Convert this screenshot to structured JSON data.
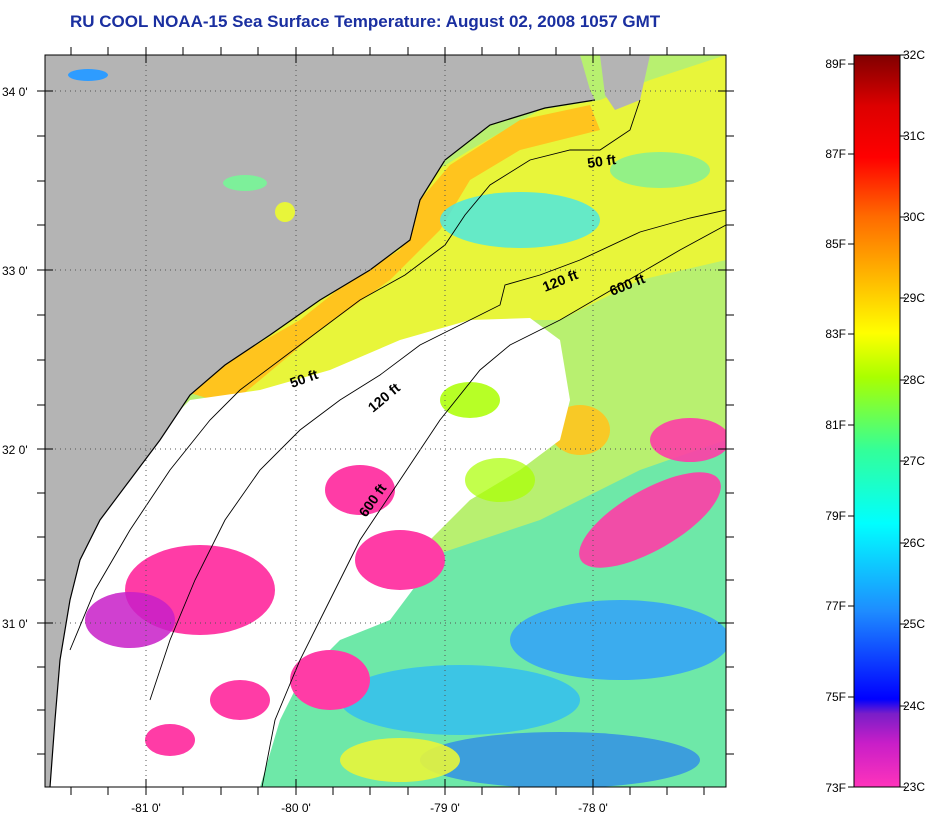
{
  "title": "RU COOL  NOAA-15  Sea Surface Temperature:  August 02, 2008 1057 GMT",
  "map": {
    "lat_labels": [
      "34 0'",
      "33 0'",
      "32 0'",
      "31 0'"
    ],
    "lon_labels": [
      "-81 0'",
      "-80 0'",
      "-79 0'",
      "-78 0'"
    ],
    "contour_labels": [
      "50 ft",
      "120 ft",
      "600 ft",
      "50 ft",
      "120 ft",
      "600 ft"
    ],
    "colors": {
      "land": "#b4b4b4",
      "cloud": "#ffffff",
      "frame": "#000000"
    }
  },
  "colorbar": {
    "fahrenheit_labels": [
      "89F",
      "87F",
      "85F",
      "83F",
      "81F",
      "79F",
      "77F",
      "75F",
      "73F"
    ],
    "celsius_labels": [
      "32C",
      "31C",
      "30C",
      "29C",
      "28C",
      "27C",
      "26C",
      "25C",
      "24C",
      "23C"
    ],
    "colors": [
      "#ff33bb",
      "#c81ec8",
      "#7a1ec8",
      "#0000ff",
      "#1e8cff",
      "#00ffff",
      "#33ff99",
      "#aaff00",
      "#ffff00",
      "#ffb400",
      "#ff6a00",
      "#ff0000",
      "#dd0000",
      "#800000"
    ]
  }
}
